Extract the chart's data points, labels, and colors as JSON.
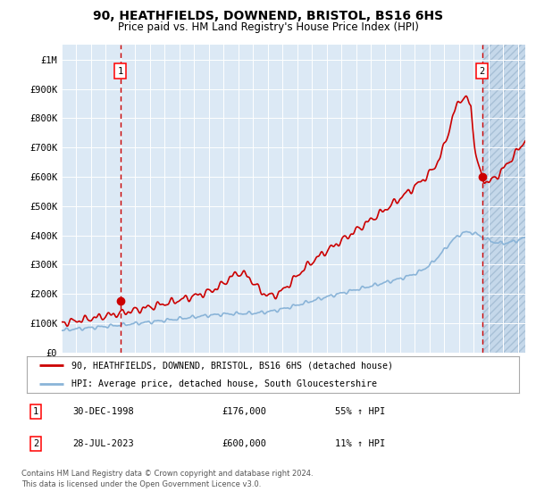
{
  "title": "90, HEATHFIELDS, DOWNEND, BRISTOL, BS16 6HS",
  "subtitle": "Price paid vs. HM Land Registry's House Price Index (HPI)",
  "title_fontsize": 10,
  "subtitle_fontsize": 8.5,
  "bg_color": "#dce9f5",
  "grid_color": "#ffffff",
  "red_line_color": "#cc0000",
  "blue_line_color": "#8ab4d8",
  "sale1_date": "30-DEC-1998",
  "sale1_price": 176000,
  "sale1_label": "55% ↑ HPI",
  "sale1_year": 1998.99,
  "sale2_date": "28-JUL-2023",
  "sale2_price": 600000,
  "sale2_label": "11% ↑ HPI",
  "sale2_year": 2023.57,
  "legend_line1": "90, HEATHFIELDS, DOWNEND, BRISTOL, BS16 6HS (detached house)",
  "legend_line2": "HPI: Average price, detached house, South Gloucestershire",
  "footer1": "Contains HM Land Registry data © Crown copyright and database right 2024.",
  "footer2": "This data is licensed under the Open Government Licence v3.0.",
  "ylim": [
    0,
    1050000
  ],
  "xlim_start": 1995.0,
  "xlim_end": 2026.5,
  "yticks": [
    0,
    100000,
    200000,
    300000,
    400000,
    500000,
    600000,
    700000,
    800000,
    900000,
    1000000
  ],
  "ytick_labels": [
    "£0",
    "£100K",
    "£200K",
    "£300K",
    "£400K",
    "£500K",
    "£600K",
    "£700K",
    "£800K",
    "£900K",
    "£1M"
  ],
  "xticks": [
    1995,
    1996,
    1997,
    1998,
    1999,
    2000,
    2001,
    2002,
    2003,
    2004,
    2005,
    2006,
    2007,
    2008,
    2009,
    2010,
    2011,
    2012,
    2013,
    2014,
    2015,
    2016,
    2017,
    2018,
    2019,
    2020,
    2021,
    2022,
    2023,
    2024,
    2025,
    2026
  ]
}
